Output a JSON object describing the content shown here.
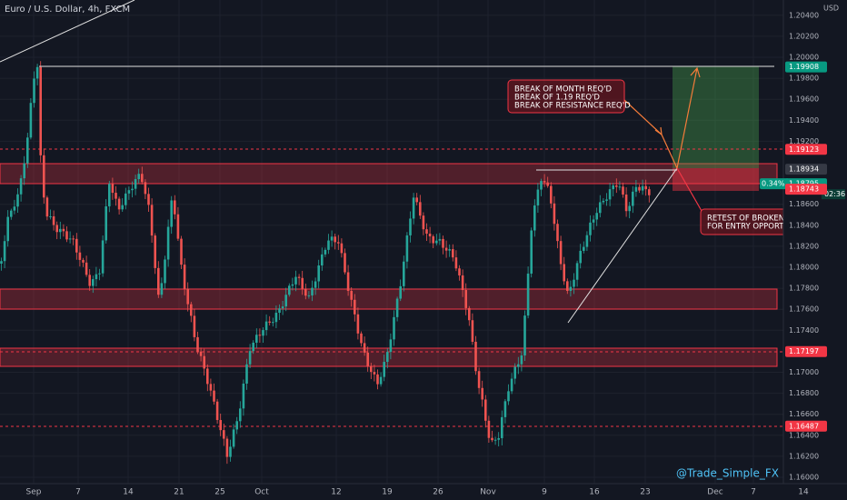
{
  "header": {
    "title": "Euro / U.S. Dollar, 4h, FXCM",
    "currency": "USD"
  },
  "price_axis": {
    "labels": [
      "1.20400",
      "1.20200",
      "1.20000",
      "1.19800",
      "1.19600",
      "1.19400",
      "1.19200",
      "1.18600",
      "1.18400",
      "1.18200",
      "1.18000",
      "1.17800",
      "1.17600",
      "1.17400",
      "1.17000",
      "1.16800",
      "1.16600",
      "1.16400",
      "1.16200",
      "1.16000"
    ]
  },
  "price_tags": [
    {
      "text": "1.19908",
      "kind": "green"
    },
    {
      "text": "1.19123",
      "kind": "red"
    },
    {
      "text": "1.18934",
      "kind": "gray"
    },
    {
      "text": "1.18795",
      "kind": "teal",
      "change": "0.34%",
      "countdown": "02:36"
    },
    {
      "text": "1.18743",
      "kind": "red"
    },
    {
      "text": "1.17197",
      "kind": "red"
    },
    {
      "text": "1.16487",
      "kind": "red"
    }
  ],
  "time_axis": {
    "labels": [
      "Sep",
      "7",
      "14",
      "21",
      "25",
      "Oct",
      "12",
      "19",
      "26",
      "Nov",
      "9",
      "16",
      "23",
      "Dec",
      "7",
      "14"
    ]
  },
  "annotations": [
    {
      "lines": [
        "BREAK OF MONTH REQ'D",
        "BREAK OF 1.19 REQ'D",
        "BREAK OF RESISTANCE REQ'D"
      ]
    },
    {
      "lines": [
        "RETEST OF BROKEN PRICE",
        "FOR ENTRY OPPORTUNITY."
      ]
    }
  ],
  "watermark": "@Trade_Simple_FX"
}
